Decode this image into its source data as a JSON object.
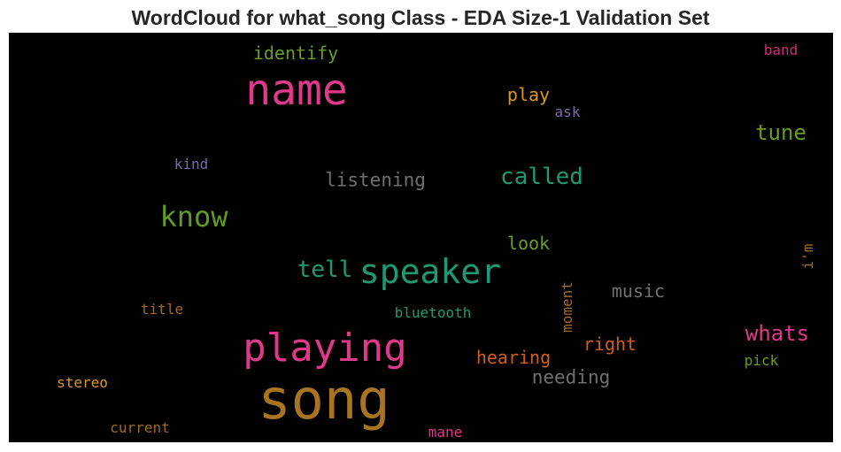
{
  "title": "WordCloud for what_song Class - EDA Size-1 Validation Set",
  "words": [
    {
      "text": "identify",
      "color": "#6a9c23"
    },
    {
      "text": "band",
      "color": "#d42a7d"
    },
    {
      "text": "name",
      "color": "#e0398a"
    },
    {
      "text": "play",
      "color": "#d99a1a"
    },
    {
      "text": "ask",
      "color": "#7a6aa6"
    },
    {
      "text": "tune",
      "color": "#6a9c23"
    },
    {
      "text": "kind",
      "color": "#7a6aa6"
    },
    {
      "text": "listening",
      "color": "#707070"
    },
    {
      "text": "called",
      "color": "#1d9a73"
    },
    {
      "text": "know",
      "color": "#5f9c20"
    },
    {
      "text": "look",
      "color": "#6a9c23"
    },
    {
      "text": "i'm",
      "color": "#a06a22"
    },
    {
      "text": "tell",
      "color": "#1d9a73"
    },
    {
      "text": "speaker",
      "color": "#1d9a73"
    },
    {
      "text": "moment",
      "color": "#a06a22"
    },
    {
      "text": "music",
      "color": "#707070"
    },
    {
      "text": "title",
      "color": "#a06a22"
    },
    {
      "text": "bluetooth",
      "color": "#1d9a73"
    },
    {
      "text": "whats",
      "color": "#e0398a"
    },
    {
      "text": "playing",
      "color": "#e0398a"
    },
    {
      "text": "right",
      "color": "#d05e17"
    },
    {
      "text": "hearing",
      "color": "#d05e17"
    },
    {
      "text": "pick",
      "color": "#6a9c23"
    },
    {
      "text": "needing",
      "color": "#707070"
    },
    {
      "text": "stereo",
      "color": "#d99a1a"
    },
    {
      "text": "song",
      "color": "#a87420"
    },
    {
      "text": "current",
      "color": "#a06a22"
    },
    {
      "text": "mane",
      "color": "#e0398a"
    }
  ]
}
